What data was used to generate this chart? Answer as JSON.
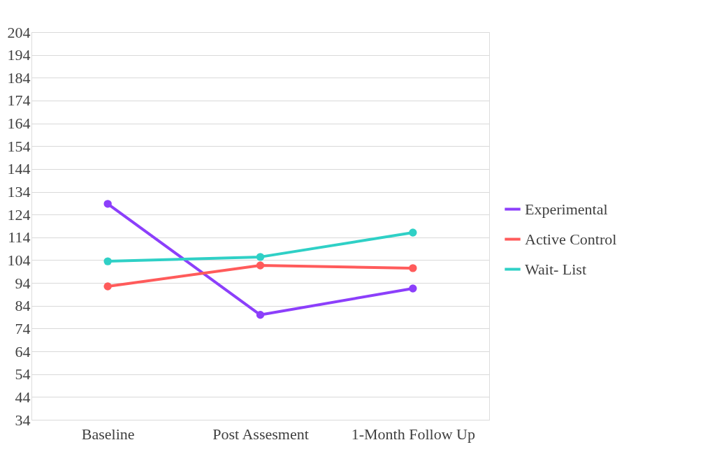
{
  "chart_data": {
    "type": "line",
    "categories": [
      "Baseline",
      "Post Assesment",
      "1-Month Follow Up"
    ],
    "series": [
      {
        "name": "Experimental",
        "color": "#8c3ffb",
        "values": [
          128.7,
          80,
          91.6
        ]
      },
      {
        "name": "Active Control",
        "color": "#ff5b5b",
        "values": [
          92.5,
          101.7,
          100.5
        ]
      },
      {
        "name": "Wait- List",
        "color": "#2fd0c6",
        "values": [
          103.5,
          105.4,
          116.1
        ]
      }
    ],
    "ylim": [
      34,
      204
    ],
    "yticks": [
      34,
      44,
      54,
      64,
      74,
      84,
      94,
      104,
      114,
      124,
      134,
      144,
      154,
      164,
      174,
      184,
      194,
      204
    ],
    "grid": "y",
    "legend": "right",
    "marker": "circle",
    "line_style": "solid"
  }
}
